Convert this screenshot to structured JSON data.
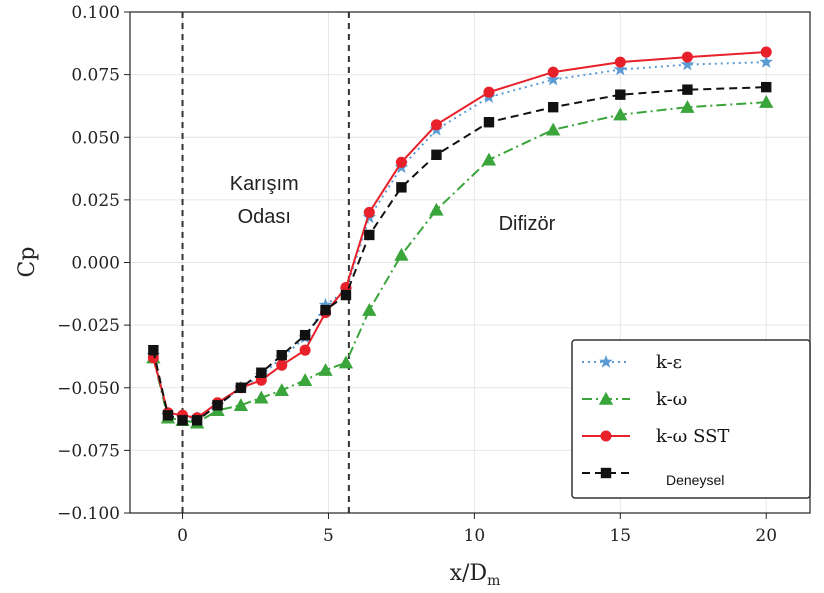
{
  "chart_data": {
    "type": "line",
    "xlabel": "x/D",
    "xlabel_sub": "m",
    "ylabel": "Cp",
    "xlim": [
      -1.8,
      21.5
    ],
    "ylim": [
      -0.1,
      0.1
    ],
    "xticks": [
      0,
      5,
      10,
      15,
      20
    ],
    "xtick_labels": [
      "0",
      "5",
      "10",
      "15",
      "20"
    ],
    "yticks": [
      -0.1,
      -0.075,
      -0.05,
      -0.025,
      0.0,
      0.025,
      0.05,
      0.075,
      0.1
    ],
    "ytick_labels": [
      "−0.100",
      "−0.075",
      "−0.050",
      "−0.025",
      "0.000",
      "0.025",
      "0.050",
      "0.075",
      "0.100"
    ],
    "grid": true,
    "legend_position": "bottom-right",
    "vlines": [
      0,
      5.7
    ],
    "annotations": [
      {
        "lines": [
          "Karışım",
          "Odası"
        ],
        "x": 2.8,
        "y": 0.029
      },
      {
        "lines": [
          "Difizör"
        ],
        "x": 11.8,
        "y": 0.013
      }
    ],
    "series": [
      {
        "name": "k-ε",
        "color": "#5b9bd5",
        "marker": "star",
        "dash": "dotted",
        "x": [
          -1.0,
          -0.5,
          0.0,
          0.5,
          1.2,
          2.0,
          2.7,
          3.4,
          4.2,
          4.9,
          5.6,
          6.4,
          7.5,
          8.7,
          10.5,
          12.7,
          15.0,
          17.3,
          20.0
        ],
        "y": [
          -0.037,
          -0.061,
          -0.062,
          -0.062,
          -0.057,
          -0.05,
          -0.045,
          -0.038,
          -0.03,
          -0.017,
          -0.011,
          0.018,
          0.038,
          0.053,
          0.066,
          0.073,
          0.077,
          0.079,
          0.08
        ]
      },
      {
        "name": "k-ω",
        "color": "#3aa53a",
        "marker": "triangle",
        "dash": "dashdot",
        "x": [
          -1.0,
          -0.5,
          0.0,
          0.5,
          1.2,
          2.0,
          2.7,
          3.4,
          4.2,
          4.9,
          5.6,
          6.4,
          7.5,
          8.7,
          10.5,
          12.7,
          15.0,
          17.3,
          20.0
        ],
        "y": [
          -0.038,
          -0.062,
          -0.063,
          -0.064,
          -0.059,
          -0.057,
          -0.054,
          -0.051,
          -0.047,
          -0.043,
          -0.04,
          -0.019,
          0.003,
          0.021,
          0.041,
          0.053,
          0.059,
          0.062,
          0.064
        ]
      },
      {
        "name": "k-ω SST",
        "color": "#e8202a",
        "marker": "circle",
        "dash": "solid",
        "x": [
          -1.0,
          -0.5,
          0.0,
          0.5,
          1.2,
          2.0,
          2.7,
          3.4,
          4.2,
          4.9,
          5.6,
          6.4,
          7.5,
          8.7,
          10.5,
          12.7,
          15.0,
          17.3,
          20.0
        ],
        "y": [
          -0.038,
          -0.06,
          -0.061,
          -0.062,
          -0.056,
          -0.05,
          -0.047,
          -0.041,
          -0.035,
          -0.02,
          -0.01,
          0.02,
          0.04,
          0.055,
          0.068,
          0.076,
          0.08,
          0.082,
          0.084
        ]
      },
      {
        "name": "Deneysel",
        "color": "#111111",
        "marker": "square",
        "dash": "dashed",
        "x": [
          -1.0,
          -0.5,
          0.0,
          0.5,
          1.2,
          2.0,
          2.7,
          3.4,
          4.2,
          4.9,
          5.6,
          6.4,
          7.5,
          8.7,
          10.5,
          12.7,
          15.0,
          17.3,
          20.0
        ],
        "y": [
          -0.035,
          -0.061,
          -0.063,
          -0.063,
          -0.057,
          -0.05,
          -0.044,
          -0.037,
          -0.029,
          -0.019,
          -0.013,
          0.011,
          0.03,
          0.043,
          0.056,
          0.062,
          0.067,
          0.069,
          0.07
        ]
      }
    ]
  }
}
